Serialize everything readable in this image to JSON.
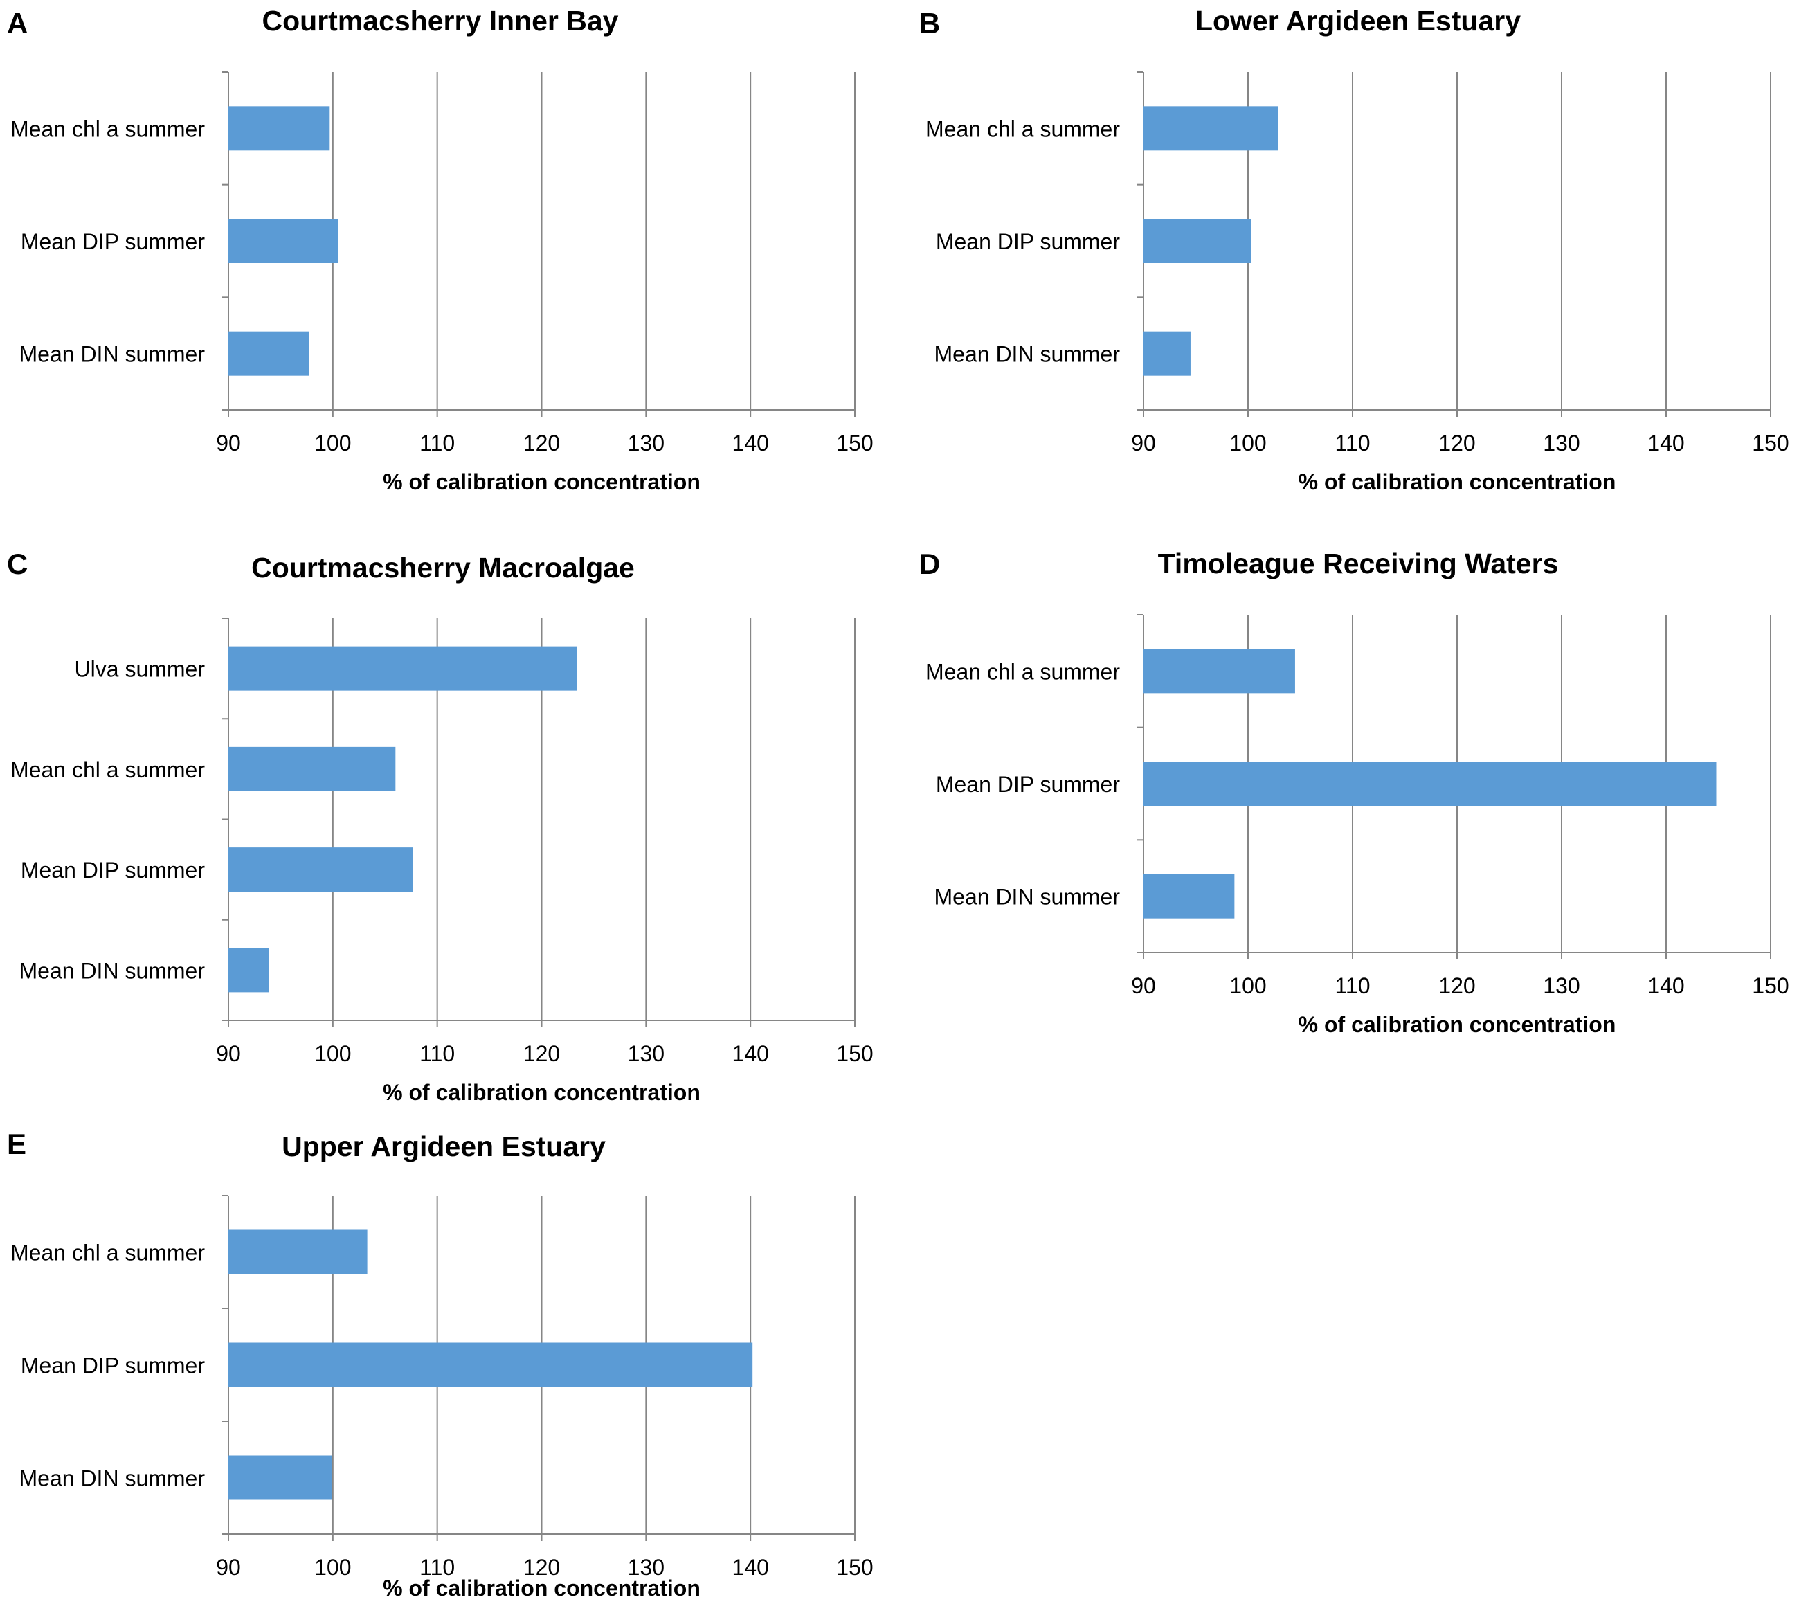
{
  "figure": {
    "panels": [
      {
        "letter": "A"
      },
      {
        "letter": "B"
      },
      {
        "letter": "C"
      },
      {
        "letter": "D"
      },
      {
        "letter": "E"
      }
    ]
  },
  "colors": {
    "bar": "#5b9bd5",
    "grid": "#868686",
    "axis": "#868686",
    "text": "#000000"
  },
  "chart_data": [
    {
      "type": "bar",
      "orientation": "horizontal",
      "title": "Courtmacsherry Inner Bay",
      "categories": [
        "Mean chl a summer",
        "Mean DIP summer",
        "Mean DIN summer"
      ],
      "values": [
        99.7,
        100.5,
        97.7
      ],
      "xlabel": "% of calibration concentration",
      "xlim": [
        90,
        150
      ],
      "xticks": [
        "90",
        "100",
        "110",
        "120",
        "130",
        "140",
        "150"
      ],
      "grid": true
    },
    {
      "type": "bar",
      "orientation": "horizontal",
      "title": "Lower Argideen Estuary",
      "categories": [
        "Mean chl a summer",
        "Mean DIP summer",
        "Mean DIN summer"
      ],
      "values": [
        102.9,
        100.3,
        94.5
      ],
      "xlabel": "% of calibration concentration",
      "xlim": [
        90,
        150
      ],
      "xticks": [
        "90",
        "100",
        "110",
        "120",
        "130",
        "140",
        "150"
      ],
      "grid": true
    },
    {
      "type": "bar",
      "orientation": "horizontal",
      "title": "Courtmacsherry Macroalgae",
      "categories": [
        "Ulva summer",
        "Mean chl a summer",
        "Mean DIP summer",
        "Mean DIN summer"
      ],
      "values": [
        123.4,
        106.0,
        107.7,
        93.9
      ],
      "xlabel": "% of calibration concentration",
      "xlim": [
        90,
        150
      ],
      "xticks": [
        "90",
        "100",
        "110",
        "120",
        "130",
        "140",
        "150"
      ],
      "grid": true
    },
    {
      "type": "bar",
      "orientation": "horizontal",
      "title": "Timoleague Receiving Waters",
      "categories": [
        "Mean chl a summer",
        "Mean DIP summer",
        "Mean DIN summer"
      ],
      "values": [
        104.5,
        144.8,
        98.7
      ],
      "xlabel": "% of calibration concentration",
      "xlim": [
        90,
        150
      ],
      "xticks": [
        "90",
        "100",
        "110",
        "120",
        "130",
        "140",
        "150"
      ],
      "grid": true
    },
    {
      "type": "bar",
      "orientation": "horizontal",
      "title": "Upper Argideen Estuary",
      "categories": [
        "Mean chl a summer",
        "Mean DIP summer",
        "Mean DIN summer"
      ],
      "values": [
        103.3,
        140.2,
        99.9
      ],
      "xlabel": "% of calibration concentration",
      "xlim": [
        90,
        150
      ],
      "xticks": [
        "90",
        "100",
        "110",
        "120",
        "130",
        "140",
        "150"
      ],
      "grid": true
    }
  ]
}
